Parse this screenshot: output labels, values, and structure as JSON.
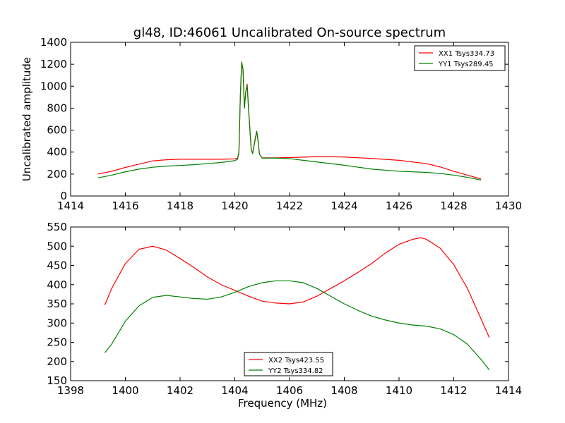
{
  "title": "gl48, ID:46061 Uncalibrated On-source spectrum",
  "chart_data": [
    {
      "type": "line",
      "ylabel": "Uncalibrated amplitude",
      "xlabel": "",
      "xlim": [
        1414,
        1430
      ],
      "ylim": [
        0,
        1400
      ],
      "xticks": [
        1414,
        1416,
        1418,
        1420,
        1422,
        1424,
        1426,
        1428,
        1430
      ],
      "yticks": [
        0,
        200,
        400,
        600,
        800,
        1000,
        1200,
        1400
      ],
      "legend_position": "top-right",
      "series": [
        {
          "name": "XX1 Tsys334.73",
          "color": "#ff0000",
          "points": [
            [
              1415,
              200
            ],
            [
              1415.5,
              225
            ],
            [
              1416,
              260
            ],
            [
              1416.5,
              290
            ],
            [
              1417,
              320
            ],
            [
              1417.5,
              330
            ],
            [
              1418,
              335
            ],
            [
              1418.5,
              335
            ],
            [
              1419,
              335
            ],
            [
              1419.5,
              335
            ],
            [
              1420,
              338
            ],
            [
              1420.1,
              345
            ],
            [
              1420.15,
              400
            ],
            [
              1420.2,
              900
            ],
            [
              1420.25,
              1220
            ],
            [
              1420.3,
              1150
            ],
            [
              1420.35,
              800
            ],
            [
              1420.4,
              950
            ],
            [
              1420.45,
              1020
            ],
            [
              1420.5,
              800
            ],
            [
              1420.6,
              420
            ],
            [
              1420.65,
              390
            ],
            [
              1420.75,
              530
            ],
            [
              1420.8,
              590
            ],
            [
              1420.85,
              500
            ],
            [
              1420.9,
              380
            ],
            [
              1421,
              348
            ],
            [
              1421.5,
              348
            ],
            [
              1422,
              350
            ],
            [
              1423,
              358
            ],
            [
              1423.5,
              358
            ],
            [
              1424,
              355
            ],
            [
              1425,
              342
            ],
            [
              1426,
              325
            ],
            [
              1427,
              295
            ],
            [
              1427.5,
              265
            ],
            [
              1428,
              225
            ],
            [
              1428.5,
              190
            ],
            [
              1429,
              155
            ]
          ]
        },
        {
          "name": "YY1 Tsys289.45",
          "color": "#008000",
          "points": [
            [
              1415,
              165
            ],
            [
              1415.5,
              190
            ],
            [
              1416,
              220
            ],
            [
              1416.5,
              245
            ],
            [
              1417,
              262
            ],
            [
              1417.5,
              272
            ],
            [
              1418,
              278
            ],
            [
              1418.5,
              285
            ],
            [
              1419,
              295
            ],
            [
              1419.5,
              305
            ],
            [
              1420,
              322
            ],
            [
              1420.1,
              335
            ],
            [
              1420.15,
              400
            ],
            [
              1420.2,
              900
            ],
            [
              1420.25,
              1220
            ],
            [
              1420.3,
              1150
            ],
            [
              1420.35,
              800
            ],
            [
              1420.4,
              950
            ],
            [
              1420.45,
              1010
            ],
            [
              1420.5,
              800
            ],
            [
              1420.6,
              420
            ],
            [
              1420.65,
              385
            ],
            [
              1420.75,
              520
            ],
            [
              1420.8,
              590
            ],
            [
              1420.85,
              500
            ],
            [
              1420.9,
              380
            ],
            [
              1421,
              345
            ],
            [
              1421.5,
              345
            ],
            [
              1422,
              340
            ],
            [
              1422.5,
              325
            ],
            [
              1423,
              310
            ],
            [
              1424,
              280
            ],
            [
              1425,
              245
            ],
            [
              1426,
              225
            ],
            [
              1427,
              215
            ],
            [
              1427.5,
              205
            ],
            [
              1428,
              190
            ],
            [
              1428.5,
              170
            ],
            [
              1429,
              145
            ]
          ]
        }
      ]
    },
    {
      "type": "line",
      "xlabel": "Frequency (MHz)",
      "ylabel": "",
      "xlim": [
        1398,
        1414
      ],
      "ylim": [
        150,
        550
      ],
      "xticks": [
        1398,
        1400,
        1402,
        1404,
        1406,
        1408,
        1410,
        1412,
        1414
      ],
      "yticks": [
        150,
        200,
        250,
        300,
        350,
        400,
        450,
        500,
        550
      ],
      "legend_position": "lower-center",
      "series": [
        {
          "name": "XX2 Tsys423.55",
          "color": "#ff0000",
          "points": [
            [
              1399.25,
              347
            ],
            [
              1399.5,
              390
            ],
            [
              1400,
              455
            ],
            [
              1400.5,
              492
            ],
            [
              1401,
              500
            ],
            [
              1401.5,
              490
            ],
            [
              1402,
              468
            ],
            [
              1402.5,
              445
            ],
            [
              1403,
              420
            ],
            [
              1403.5,
              400
            ],
            [
              1404,
              385
            ],
            [
              1404.5,
              370
            ],
            [
              1405,
              357
            ],
            [
              1405.5,
              352
            ],
            [
              1406,
              350
            ],
            [
              1406.5,
              355
            ],
            [
              1407,
              370
            ],
            [
              1407.5,
              390
            ],
            [
              1408,
              410
            ],
            [
              1408.5,
              432
            ],
            [
              1409,
              455
            ],
            [
              1409.5,
              482
            ],
            [
              1410,
              505
            ],
            [
              1410.5,
              518
            ],
            [
              1410.8,
              522
            ],
            [
              1411,
              518
            ],
            [
              1411.5,
              495
            ],
            [
              1412,
              452
            ],
            [
              1412.5,
              390
            ],
            [
              1413,
              310
            ],
            [
              1413.3,
              262
            ]
          ]
        },
        {
          "name": "YY2 Tsys334.82",
          "color": "#008000",
          "points": [
            [
              1399.25,
              223
            ],
            [
              1399.5,
              245
            ],
            [
              1400,
              305
            ],
            [
              1400.5,
              345
            ],
            [
              1401,
              367
            ],
            [
              1401.5,
              372
            ],
            [
              1402,
              368
            ],
            [
              1402.5,
              364
            ],
            [
              1403,
              362
            ],
            [
              1403.5,
              368
            ],
            [
              1404,
              380
            ],
            [
              1404.5,
              395
            ],
            [
              1405,
              405
            ],
            [
              1405.5,
              410
            ],
            [
              1406,
              410
            ],
            [
              1406.5,
              405
            ],
            [
              1407,
              390
            ],
            [
              1407.5,
              370
            ],
            [
              1408,
              350
            ],
            [
              1408.5,
              333
            ],
            [
              1409,
              318
            ],
            [
              1409.5,
              308
            ],
            [
              1410,
              300
            ],
            [
              1410.5,
              295
            ],
            [
              1411,
              292
            ],
            [
              1411.5,
              285
            ],
            [
              1412,
              270
            ],
            [
              1412.5,
              245
            ],
            [
              1413,
              205
            ],
            [
              1413.3,
              178
            ]
          ]
        }
      ]
    }
  ]
}
